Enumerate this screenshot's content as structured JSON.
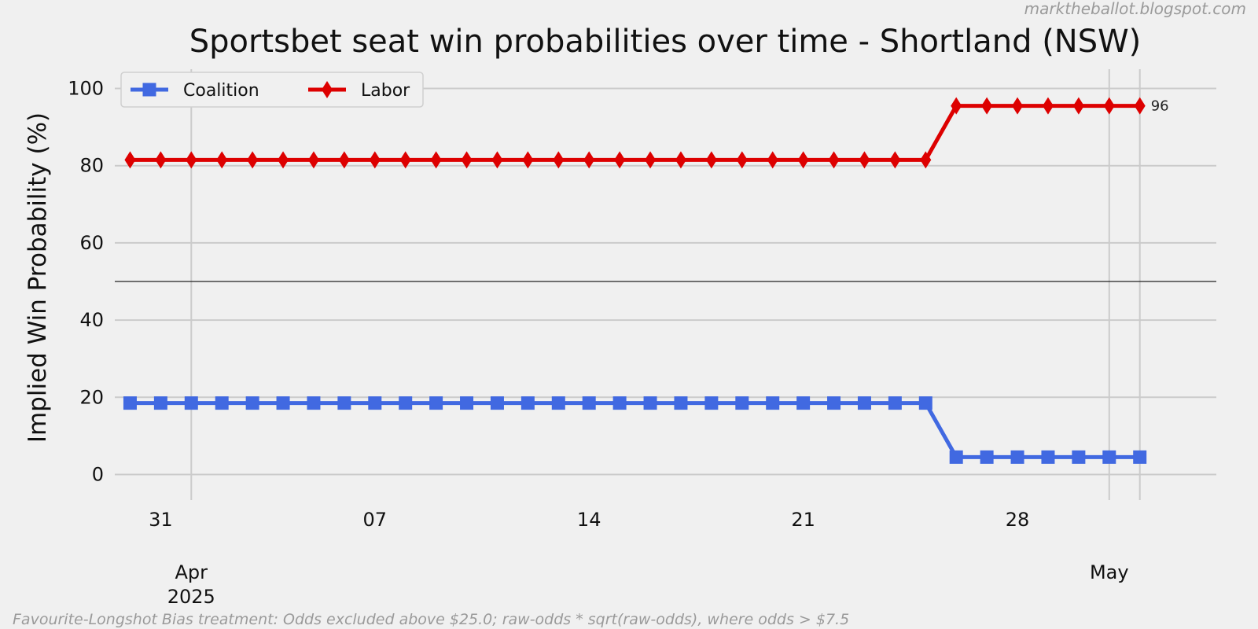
{
  "attribution": "marktheballot.blogspot.com",
  "footnote": "Favourite-Longshot Bias treatment: Odds excluded above $25.0; raw-odds * sqrt(raw-odds), where odds > $7.5",
  "chart_data": {
    "type": "line",
    "title": "Sportsbet seat win probabilities over time - Shortland (NSW)",
    "xlabel": "",
    "ylabel": "Implied Win Probability (%)",
    "ylim": [
      -5,
      105
    ],
    "xlim": [
      "2025-03-29 12:00",
      "2025-05-04 12:00"
    ],
    "yticks": [
      0,
      20,
      40,
      60,
      80,
      100
    ],
    "xticks_minor": [
      {
        "date": "2025-03-31",
        "label": "31"
      },
      {
        "date": "2025-04-07",
        "label": "07"
      },
      {
        "date": "2025-04-14",
        "label": "14"
      },
      {
        "date": "2025-04-21",
        "label": "21"
      },
      {
        "date": "2025-04-28",
        "label": "28"
      }
    ],
    "xticks_major": [
      {
        "date": "2025-04-01",
        "label": "Apr\n2025"
      },
      {
        "date": "2025-05-01",
        "label": "May"
      }
    ],
    "reference_line_y": 50,
    "grid": true,
    "legend_position": "top-left",
    "x": [
      "2025-03-30",
      "2025-03-31",
      "2025-04-01",
      "2025-04-02",
      "2025-04-03",
      "2025-04-04",
      "2025-04-05",
      "2025-04-06",
      "2025-04-07",
      "2025-04-08",
      "2025-04-09",
      "2025-04-10",
      "2025-04-11",
      "2025-04-12",
      "2025-04-13",
      "2025-04-14",
      "2025-04-15",
      "2025-04-16",
      "2025-04-17",
      "2025-04-18",
      "2025-04-19",
      "2025-04-20",
      "2025-04-21",
      "2025-04-22",
      "2025-04-23",
      "2025-04-24",
      "2025-04-25",
      "2025-04-26",
      "2025-04-27",
      "2025-04-28",
      "2025-04-29",
      "2025-04-30",
      "2025-05-01",
      "2025-05-02"
    ],
    "series": [
      {
        "name": "Coalition",
        "color": "#4169e1",
        "marker": "square",
        "values": [
          18.5,
          18.5,
          18.5,
          18.5,
          18.5,
          18.5,
          18.5,
          18.5,
          18.5,
          18.5,
          18.5,
          18.5,
          18.5,
          18.5,
          18.5,
          18.5,
          18.5,
          18.5,
          18.5,
          18.5,
          18.5,
          18.5,
          18.5,
          18.5,
          18.5,
          18.5,
          18.5,
          4.5,
          4.5,
          4.5,
          4.5,
          4.5,
          4.5,
          4.5
        ]
      },
      {
        "name": "Labor",
        "color": "#dd0000",
        "marker": "diamond",
        "values": [
          81.5,
          81.5,
          81.5,
          81.5,
          81.5,
          81.5,
          81.5,
          81.5,
          81.5,
          81.5,
          81.5,
          81.5,
          81.5,
          81.5,
          81.5,
          81.5,
          81.5,
          81.5,
          81.5,
          81.5,
          81.5,
          81.5,
          81.5,
          81.5,
          81.5,
          81.5,
          81.5,
          95.5,
          95.5,
          95.5,
          95.5,
          95.5,
          95.5,
          95.5
        ],
        "end_label": "96"
      }
    ]
  }
}
